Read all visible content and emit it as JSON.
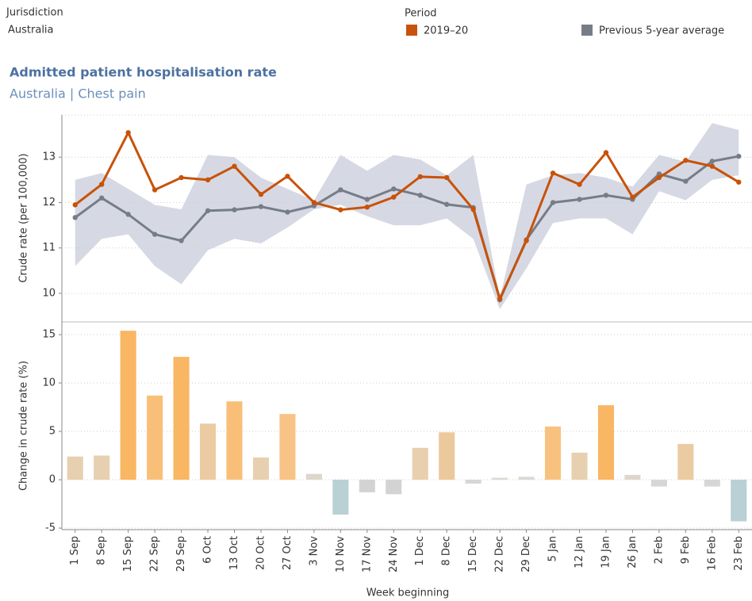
{
  "filters": {
    "jurisdiction": {
      "label": "Jurisdiction",
      "value": "Australia"
    },
    "period": {
      "label": "Period"
    }
  },
  "chart_data": [
    {
      "type": "line",
      "title": "Admitted patient hospitalisation rate",
      "subtitle": "Australia | Chest pain",
      "y_label": "Crude rate (per 100,000)",
      "categories": [
        "1 Sep",
        "8 Sep",
        "15 Sep",
        "22 Sep",
        "29 Sep",
        "6 Oct",
        "13 Oct",
        "20 Oct",
        "27 Oct",
        "3 Nov",
        "10 Nov",
        "17 Nov",
        "24 Nov",
        "1 Dec",
        "8 Dec",
        "15 Dec",
        "22 Dec",
        "29 Dec",
        "5 Jan",
        "12 Jan",
        "19 Jan",
        "26 Jan",
        "2 Feb",
        "9 Feb",
        "16 Feb",
        "23 Feb"
      ],
      "series": [
        {
          "name": "2019–20",
          "color": "#c8520a",
          "values": [
            11.95,
            12.4,
            13.54,
            12.28,
            12.55,
            12.5,
            12.8,
            12.18,
            12.58,
            12.0,
            11.84,
            11.9,
            12.12,
            12.57,
            12.55,
            11.85,
            9.88,
            11.16,
            12.65,
            12.4,
            13.1,
            12.12,
            12.55,
            12.93,
            12.8,
            12.45
          ]
        },
        {
          "name": "Previous 5-year average",
          "color": "#767d88",
          "values": [
            11.67,
            12.1,
            11.74,
            11.3,
            11.16,
            11.82,
            11.84,
            11.91,
            11.79,
            11.93,
            12.28,
            12.07,
            12.3,
            12.16,
            11.96,
            11.89,
            9.86,
            11.18,
            12.0,
            12.07,
            12.16,
            12.07,
            12.63,
            12.47,
            12.91,
            13.02
          ]
        }
      ],
      "band": {
        "color": "#d6d9e3",
        "upper": [
          12.5,
          12.65,
          12.3,
          11.95,
          11.85,
          13.05,
          13.0,
          12.55,
          12.3,
          12.05,
          13.05,
          12.7,
          13.05,
          12.95,
          12.6,
          13.05,
          9.9,
          12.4,
          12.6,
          12.65,
          12.55,
          12.35,
          13.05,
          12.9,
          13.75,
          13.6
        ],
        "lower": [
          10.6,
          11.2,
          11.3,
          10.6,
          10.2,
          10.95,
          11.2,
          11.1,
          11.45,
          11.85,
          11.95,
          11.7,
          11.5,
          11.5,
          11.65,
          11.2,
          9.65,
          10.55,
          11.55,
          11.65,
          11.65,
          11.3,
          12.25,
          12.05,
          12.5,
          12.6
        ]
      },
      "ylim": [
        9.37,
        13.93
      ],
      "yticks": [
        10,
        11,
        12,
        13
      ],
      "grid": true
    },
    {
      "type": "bar",
      "y_label": "Change in crude rate (%)",
      "x_label": "Week beginning",
      "categories": [
        "1 Sep",
        "8 Sep",
        "15 Sep",
        "22 Sep",
        "29 Sep",
        "6 Oct",
        "13 Oct",
        "20 Oct",
        "27 Oct",
        "3 Nov",
        "10 Nov",
        "17 Nov",
        "24 Nov",
        "1 Dec",
        "8 Dec",
        "15 Dec",
        "22 Dec",
        "29 Dec",
        "5 Jan",
        "12 Jan",
        "19 Jan",
        "26 Jan",
        "2 Feb",
        "9 Feb",
        "16 Feb",
        "23 Feb"
      ],
      "values": [
        2.4,
        2.5,
        15.4,
        8.7,
        12.7,
        5.8,
        8.1,
        2.3,
        6.8,
        0.6,
        -3.6,
        -1.3,
        -1.5,
        3.3,
        4.9,
        -0.4,
        0.2,
        0.3,
        5.5,
        2.8,
        7.7,
        0.5,
        -0.7,
        3.7,
        -0.7,
        -4.3
      ],
      "colors": [
        "#e7d0b0",
        "#e7d0b0",
        "#f9b663",
        "#f9bf79",
        "#f9b663",
        "#ebcba2",
        "#f9bf79",
        "#e7d0b0",
        "#f8c386",
        "#ddd6cb",
        "#b9d0d4",
        "#d3d3d3",
        "#d3d3d3",
        "#e8cfae",
        "#ecc99c",
        "#d6d6d6",
        "#dcd8d2",
        "#dcd8d2",
        "#f7c27d",
        "#e7d0b0",
        "#f9b663",
        "#ddd6cb",
        "#d6d6d6",
        "#ebcba2",
        "#d6d6d6",
        "#b9d0d4"
      ],
      "ylim": [
        -5.16,
        16.15
      ],
      "yticks": [
        -5,
        0,
        5,
        10,
        15
      ],
      "grid": true
    }
  ]
}
